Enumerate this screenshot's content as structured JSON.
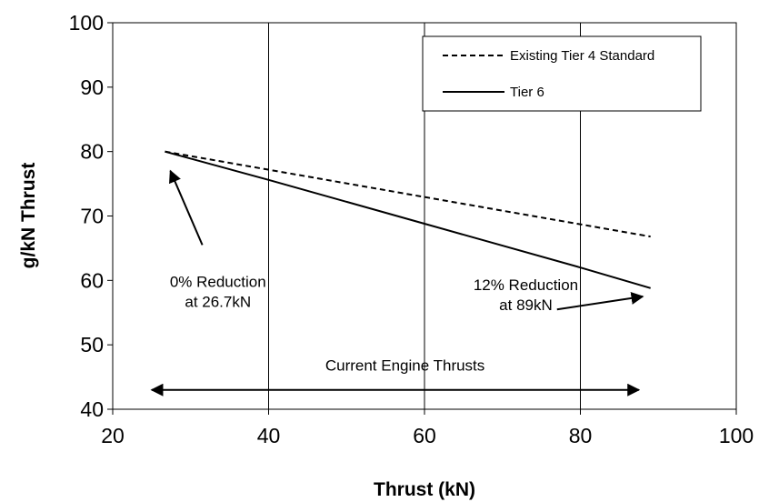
{
  "chart_data": {
    "type": "line",
    "xlabel": "Thrust (kN)",
    "ylabel": "g/kN Thrust",
    "xlim": [
      20,
      100
    ],
    "ylim": [
      40,
      100
    ],
    "xticks": [
      20,
      40,
      60,
      80,
      100
    ],
    "yticks": [
      40,
      50,
      60,
      70,
      80,
      90,
      100
    ],
    "vertical_gridlines": [
      40,
      60,
      80
    ],
    "series": [
      {
        "name": "Existing Tier 4 Standard",
        "style": "dashed",
        "color": "#000000",
        "x": [
          26.7,
          89
        ],
        "y": [
          80,
          66.8
        ]
      },
      {
        "name": "Tier 6",
        "style": "solid",
        "color": "#000000",
        "x": [
          26.7,
          40,
          60,
          80,
          89
        ],
        "y": [
          80,
          75.6,
          68.8,
          62,
          58.8
        ]
      }
    ],
    "legend_position": "top-right",
    "annotations": [
      {
        "lines": [
          "0% Reduction",
          "at 26.7kN"
        ],
        "text_at": [
          33.5,
          59
        ],
        "arrow_from": [
          31.5,
          65.5
        ],
        "arrow_to": [
          27.4,
          77
        ]
      },
      {
        "lines": [
          "12% Reduction",
          "at 89kN"
        ],
        "text_at": [
          73,
          58.5
        ],
        "arrow_from": [
          77,
          55.5
        ],
        "arrow_to": [
          88,
          57.5
        ]
      },
      {
        "lines": [
          "Current Engine Thrusts"
        ],
        "text_at": [
          57.5,
          46
        ],
        "double_arrow_from": [
          25,
          43
        ],
        "double_arrow_to": [
          87.5,
          43
        ]
      }
    ]
  }
}
